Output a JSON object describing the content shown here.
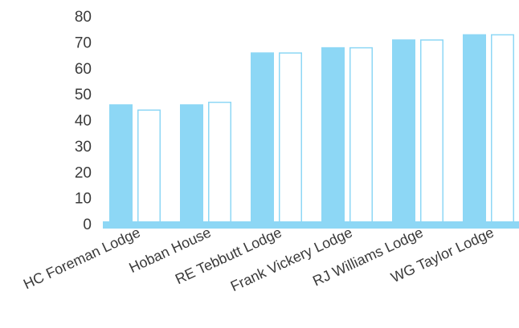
{
  "chart_data": {
    "type": "bar",
    "title": "",
    "xlabel": "",
    "ylabel": "",
    "ylim": [
      0,
      80
    ],
    "yticks": [
      "0",
      "10",
      "20",
      "30",
      "40",
      "50",
      "60",
      "70",
      "80"
    ],
    "categories": [
      "HC Foreman Lodge",
      "Hoban House",
      "RE Tebbutt Lodge",
      "Frank Vickery Lodge",
      "RJ Williams Lodge",
      "WG Taylor Lodge"
    ],
    "series": [
      {
        "values": [
          46,
          46,
          66,
          68,
          71,
          73
        ],
        "style": "filled"
      },
      {
        "values": [
          44,
          47,
          66,
          68,
          71,
          73
        ],
        "style": "outline"
      }
    ],
    "grid": false,
    "legend": "none",
    "colors": {
      "bar": "#8dd7f5",
      "outline_fill": "#ffffff",
      "text": "#3a3a3a"
    }
  }
}
